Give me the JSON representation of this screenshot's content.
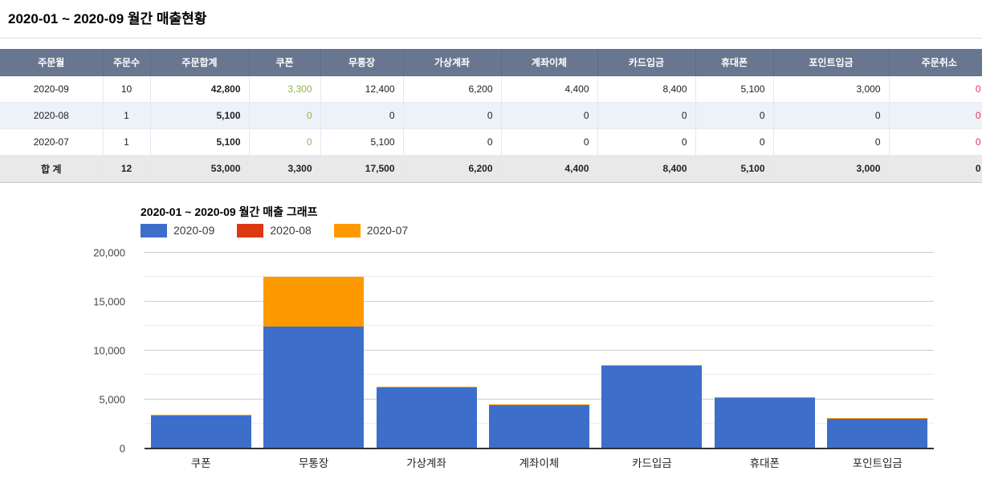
{
  "page": {
    "title": "2020-01 ~ 2020-09 월간 매출현황"
  },
  "table": {
    "columns": [
      {
        "key": "month",
        "label": "주문월"
      },
      {
        "key": "count",
        "label": "주문수"
      },
      {
        "key": "total",
        "label": "주문합계"
      },
      {
        "key": "coupon",
        "label": "쿠폰"
      },
      {
        "key": "bank",
        "label": "무통장"
      },
      {
        "key": "virtual",
        "label": "가상계좌"
      },
      {
        "key": "transfer",
        "label": "계좌이체"
      },
      {
        "key": "card",
        "label": "카드입금"
      },
      {
        "key": "mobile",
        "label": "휴대폰"
      },
      {
        "key": "point",
        "label": "포인트입금"
      },
      {
        "key": "cancel",
        "label": "주문취소"
      }
    ],
    "rows": [
      [
        "2020-09",
        "10",
        "42,800",
        "3,300",
        "12,400",
        "6,200",
        "4,400",
        "8,400",
        "5,100",
        "3,000",
        "0"
      ],
      [
        "2020-08",
        "1",
        "5,100",
        "0",
        "0",
        "0",
        "0",
        "0",
        "0",
        "0",
        "0"
      ],
      [
        "2020-07",
        "1",
        "5,100",
        "0",
        "5,100",
        "0",
        "0",
        "0",
        "0",
        "0",
        "0"
      ]
    ],
    "total_row": [
      "합 계",
      "12",
      "53,000",
      "3,300",
      "17,500",
      "6,200",
      "4,400",
      "8,400",
      "5,100",
      "3,000",
      "0"
    ]
  },
  "chart_data": {
    "type": "bar",
    "stacked": true,
    "title": "2020-01 ~ 2020-09 월간 매출 그래프",
    "categories": [
      "쿠폰",
      "무통장",
      "가상계좌",
      "계좌이체",
      "카드입금",
      "휴대폰",
      "포인트입금"
    ],
    "series": [
      {
        "name": "2020-09",
        "color": "#3D6EC9",
        "values": [
          3300,
          12400,
          6200,
          4400,
          8400,
          5100,
          3000
        ]
      },
      {
        "name": "2020-08",
        "color": "#DC3912",
        "values": [
          0,
          0,
          0,
          0,
          0,
          0,
          0
        ]
      },
      {
        "name": "2020-07",
        "color": "#FF9900",
        "values": [
          0,
          5100,
          0,
          0,
          0,
          0,
          0
        ]
      }
    ],
    "xlabel": "",
    "ylabel": "",
    "ylim": [
      0,
      20000
    ],
    "yticks": [
      0,
      5000,
      10000,
      15000,
      20000
    ],
    "ytick_labels": [
      "0",
      "5,000",
      "10,000",
      "15,000",
      "20,000"
    ],
    "minor_ticks": [
      2500,
      7500,
      12500,
      17500
    ],
    "grid": true,
    "legend_position": "top"
  },
  "colors": {
    "header_bg": "#68778F",
    "alt_row_bg": "#EDF1F8",
    "total_row_bg": "#E9E9E9",
    "coupon_text": "#92B54E",
    "cancel_text": "#ED2E58",
    "series_blue": "#3D6EC9",
    "series_red": "#DC3912",
    "series_orange": "#FF9900"
  }
}
